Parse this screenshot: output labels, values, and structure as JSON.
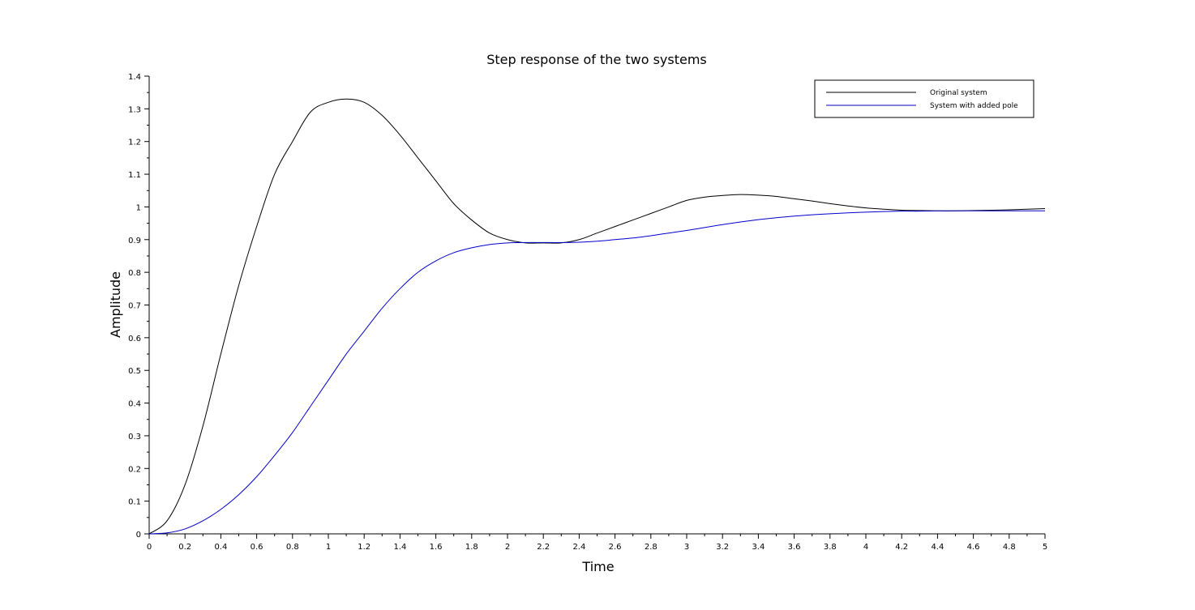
{
  "chart_data": {
    "type": "line",
    "title": "Step response of the two systems",
    "xlabel": "Time",
    "ylabel": "Amplitude",
    "xlim": [
      0,
      5
    ],
    "ylim": [
      0,
      1.4
    ],
    "x_ticks": [
      "0",
      "0.2",
      "0.4",
      "0.6",
      "0.8",
      "1",
      "1.2",
      "1.4",
      "1.6",
      "1.8",
      "2",
      "2.2",
      "2.4",
      "2.6",
      "2.8",
      "3",
      "3.2",
      "3.4",
      "3.6",
      "3.8",
      "4",
      "4.2",
      "4.4",
      "4.6",
      "4.8",
      "5"
    ],
    "y_ticks": [
      "0",
      "0.1",
      "0.2",
      "0.3",
      "0.4",
      "0.5",
      "0.6",
      "0.7",
      "0.8",
      "0.9",
      "1",
      "1.1",
      "1.2",
      "1.3",
      "1.4"
    ],
    "grid": false,
    "legend_position": "top-right",
    "series": [
      {
        "name": "Original system",
        "color": "#000000",
        "x": [
          0,
          0.1,
          0.2,
          0.3,
          0.4,
          0.5,
          0.6,
          0.7,
          0.8,
          0.9,
          1.0,
          1.1,
          1.2,
          1.3,
          1.4,
          1.5,
          1.6,
          1.7,
          1.8,
          1.9,
          2.0,
          2.1,
          2.2,
          2.3,
          2.4,
          2.5,
          2.6,
          2.7,
          2.8,
          2.9,
          3.0,
          3.1,
          3.2,
          3.3,
          3.4,
          3.5,
          3.6,
          3.7,
          3.8,
          3.9,
          4.0,
          4.1,
          4.2,
          4.3,
          4.4,
          4.5,
          4.6,
          4.7,
          4.8,
          4.9,
          5.0
        ],
        "y": [
          0,
          0.04,
          0.15,
          0.33,
          0.55,
          0.76,
          0.94,
          1.1,
          1.2,
          1.29,
          1.32,
          1.33,
          1.32,
          1.28,
          1.22,
          1.15,
          1.08,
          1.01,
          0.96,
          0.92,
          0.9,
          0.89,
          0.89,
          0.89,
          0.9,
          0.92,
          0.94,
          0.96,
          0.98,
          1.0,
          1.02,
          1.03,
          1.035,
          1.038,
          1.036,
          1.032,
          1.025,
          1.018,
          1.01,
          1.003,
          0.997,
          0.993,
          0.99,
          0.989,
          0.988,
          0.988,
          0.989,
          0.99,
          0.991,
          0.993,
          0.995
        ]
      },
      {
        "name": "System with added pole",
        "color": "#0000cc",
        "x": [
          0,
          0.1,
          0.2,
          0.3,
          0.4,
          0.5,
          0.6,
          0.7,
          0.8,
          0.9,
          1.0,
          1.1,
          1.2,
          1.3,
          1.4,
          1.5,
          1.6,
          1.7,
          1.8,
          1.9,
          2.0,
          2.1,
          2.2,
          2.3,
          2.4,
          2.5,
          2.6,
          2.7,
          2.8,
          2.9,
          3.0,
          3.1,
          3.2,
          3.3,
          3.4,
          3.5,
          3.6,
          3.7,
          3.8,
          3.9,
          4.0,
          4.1,
          4.2,
          4.3,
          4.4,
          4.5,
          4.6,
          4.7,
          4.8,
          4.9,
          5.0
        ],
        "y": [
          0,
          0.003,
          0.015,
          0.04,
          0.075,
          0.12,
          0.175,
          0.24,
          0.31,
          0.39,
          0.47,
          0.55,
          0.62,
          0.69,
          0.75,
          0.8,
          0.835,
          0.86,
          0.875,
          0.885,
          0.89,
          0.891,
          0.891,
          0.891,
          0.892,
          0.895,
          0.9,
          0.905,
          0.912,
          0.92,
          0.928,
          0.937,
          0.946,
          0.954,
          0.961,
          0.967,
          0.972,
          0.976,
          0.979,
          0.982,
          0.984,
          0.986,
          0.987,
          0.987,
          0.988,
          0.988,
          0.988,
          0.988,
          0.988,
          0.988,
          0.988
        ]
      }
    ]
  }
}
